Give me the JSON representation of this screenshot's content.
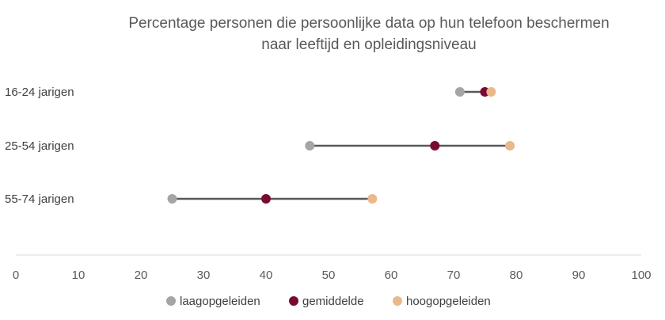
{
  "chart_data": {
    "type": "dumbbell",
    "title_lines": [
      "Percentage personen die persoonlijke data op hun telefoon beschermen",
      "naar leeftijd en opleidingsniveau"
    ],
    "xlim": [
      0,
      100
    ],
    "x_ticks": [
      0,
      10,
      20,
      30,
      40,
      50,
      60,
      70,
      80,
      90,
      100
    ],
    "x_tick_labels": [
      "0",
      "10",
      "20",
      "30",
      "40",
      "50",
      "60",
      "70",
      "80",
      "90",
      "100"
    ],
    "categories": [
      "16-24 jarigen",
      "25-54 jarigen",
      "55-74 jarigen"
    ],
    "series": [
      {
        "name": "laagopgeleiden",
        "color": "#a5a5a5",
        "values": [
          71,
          47,
          25
        ]
      },
      {
        "name": "gemiddelde",
        "color": "#7a0a33",
        "values": [
          75,
          67,
          40
        ]
      },
      {
        "name": "hoogopgeleiden",
        "color": "#eab88a",
        "values": [
          76,
          79,
          57
        ]
      }
    ],
    "connector_color": "#595959",
    "axis_color": "#d9d9d9",
    "grid": false,
    "legend_position": "bottom"
  }
}
